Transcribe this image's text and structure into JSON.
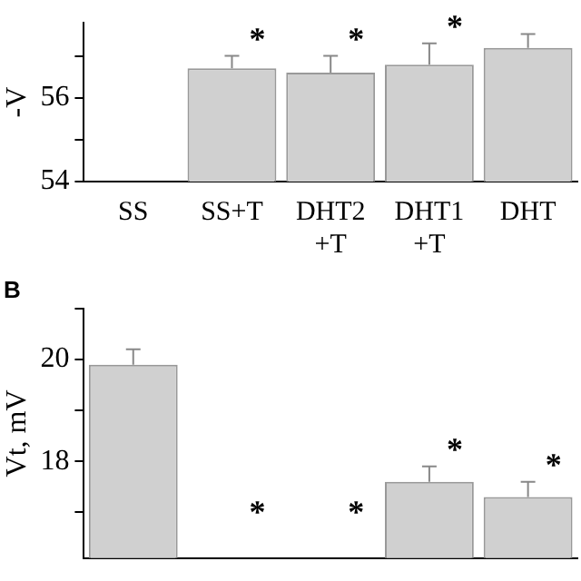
{
  "chart_data": [
    {
      "type": "bar",
      "ylabel": "-V",
      "categories": [
        "SS",
        "SS+T",
        "DHT2\n+T",
        "DHT1\n+T",
        "DHT"
      ],
      "values": [
        null,
        56.71,
        56.61,
        56.8,
        57.2
      ],
      "errors": [
        null,
        [
          56.71,
          57.01
        ],
        [
          56.61,
          57.01
        ],
        [
          56.8,
          57.31
        ],
        [
          57.2,
          57.53
        ]
      ],
      "color": "#d0d0d0",
      "ylim": [
        54,
        57.8
      ],
      "yticks": [
        54,
        {
          "value": 55,
          "label": null
        },
        56,
        {
          "value": 57,
          "label": null
        }
      ],
      "grid": false,
      "legend": false,
      "annotations": [
        {
          "text": "*",
          "x": "SS+T",
          "y": 57.01
        },
        {
          "text": "*",
          "x": "DHT2\n+T",
          "y": 57.01
        },
        {
          "text": "*",
          "x": "DHT1\n+T",
          "y": 57.31
        }
      ]
    },
    {
      "type": "bar",
      "title": "B",
      "ylabel": "Vt, mV",
      "categories": [
        "SS",
        "SS+T",
        "DHT2\n+T",
        "DHT1\n+T",
        "DHT"
      ],
      "values": [
        19.9,
        null,
        null,
        17.6,
        17.3
      ],
      "errors": [
        [
          19.9,
          20.2
        ],
        null,
        null,
        [
          17.6,
          17.9
        ],
        [
          17.3,
          17.6
        ]
      ],
      "color": "#d0d0d0",
      "ylim": [
        16.1,
        21
      ],
      "yticks": [
        {
          "value": 17,
          "label": null
        },
        18,
        {
          "value": 19,
          "label": null
        },
        20,
        {
          "value": 21,
          "label": null
        }
      ],
      "grid": false,
      "legend": false,
      "tick_labels": "y",
      "annotations": [
        "*",
        "*",
        {
          "text": "*",
          "x": "DHT1\n+T",
          "y": 17.9
        },
        {
          "text": "*",
          "x": "DHT",
          "y": 17.6
        }
      ]
    }
  ]
}
